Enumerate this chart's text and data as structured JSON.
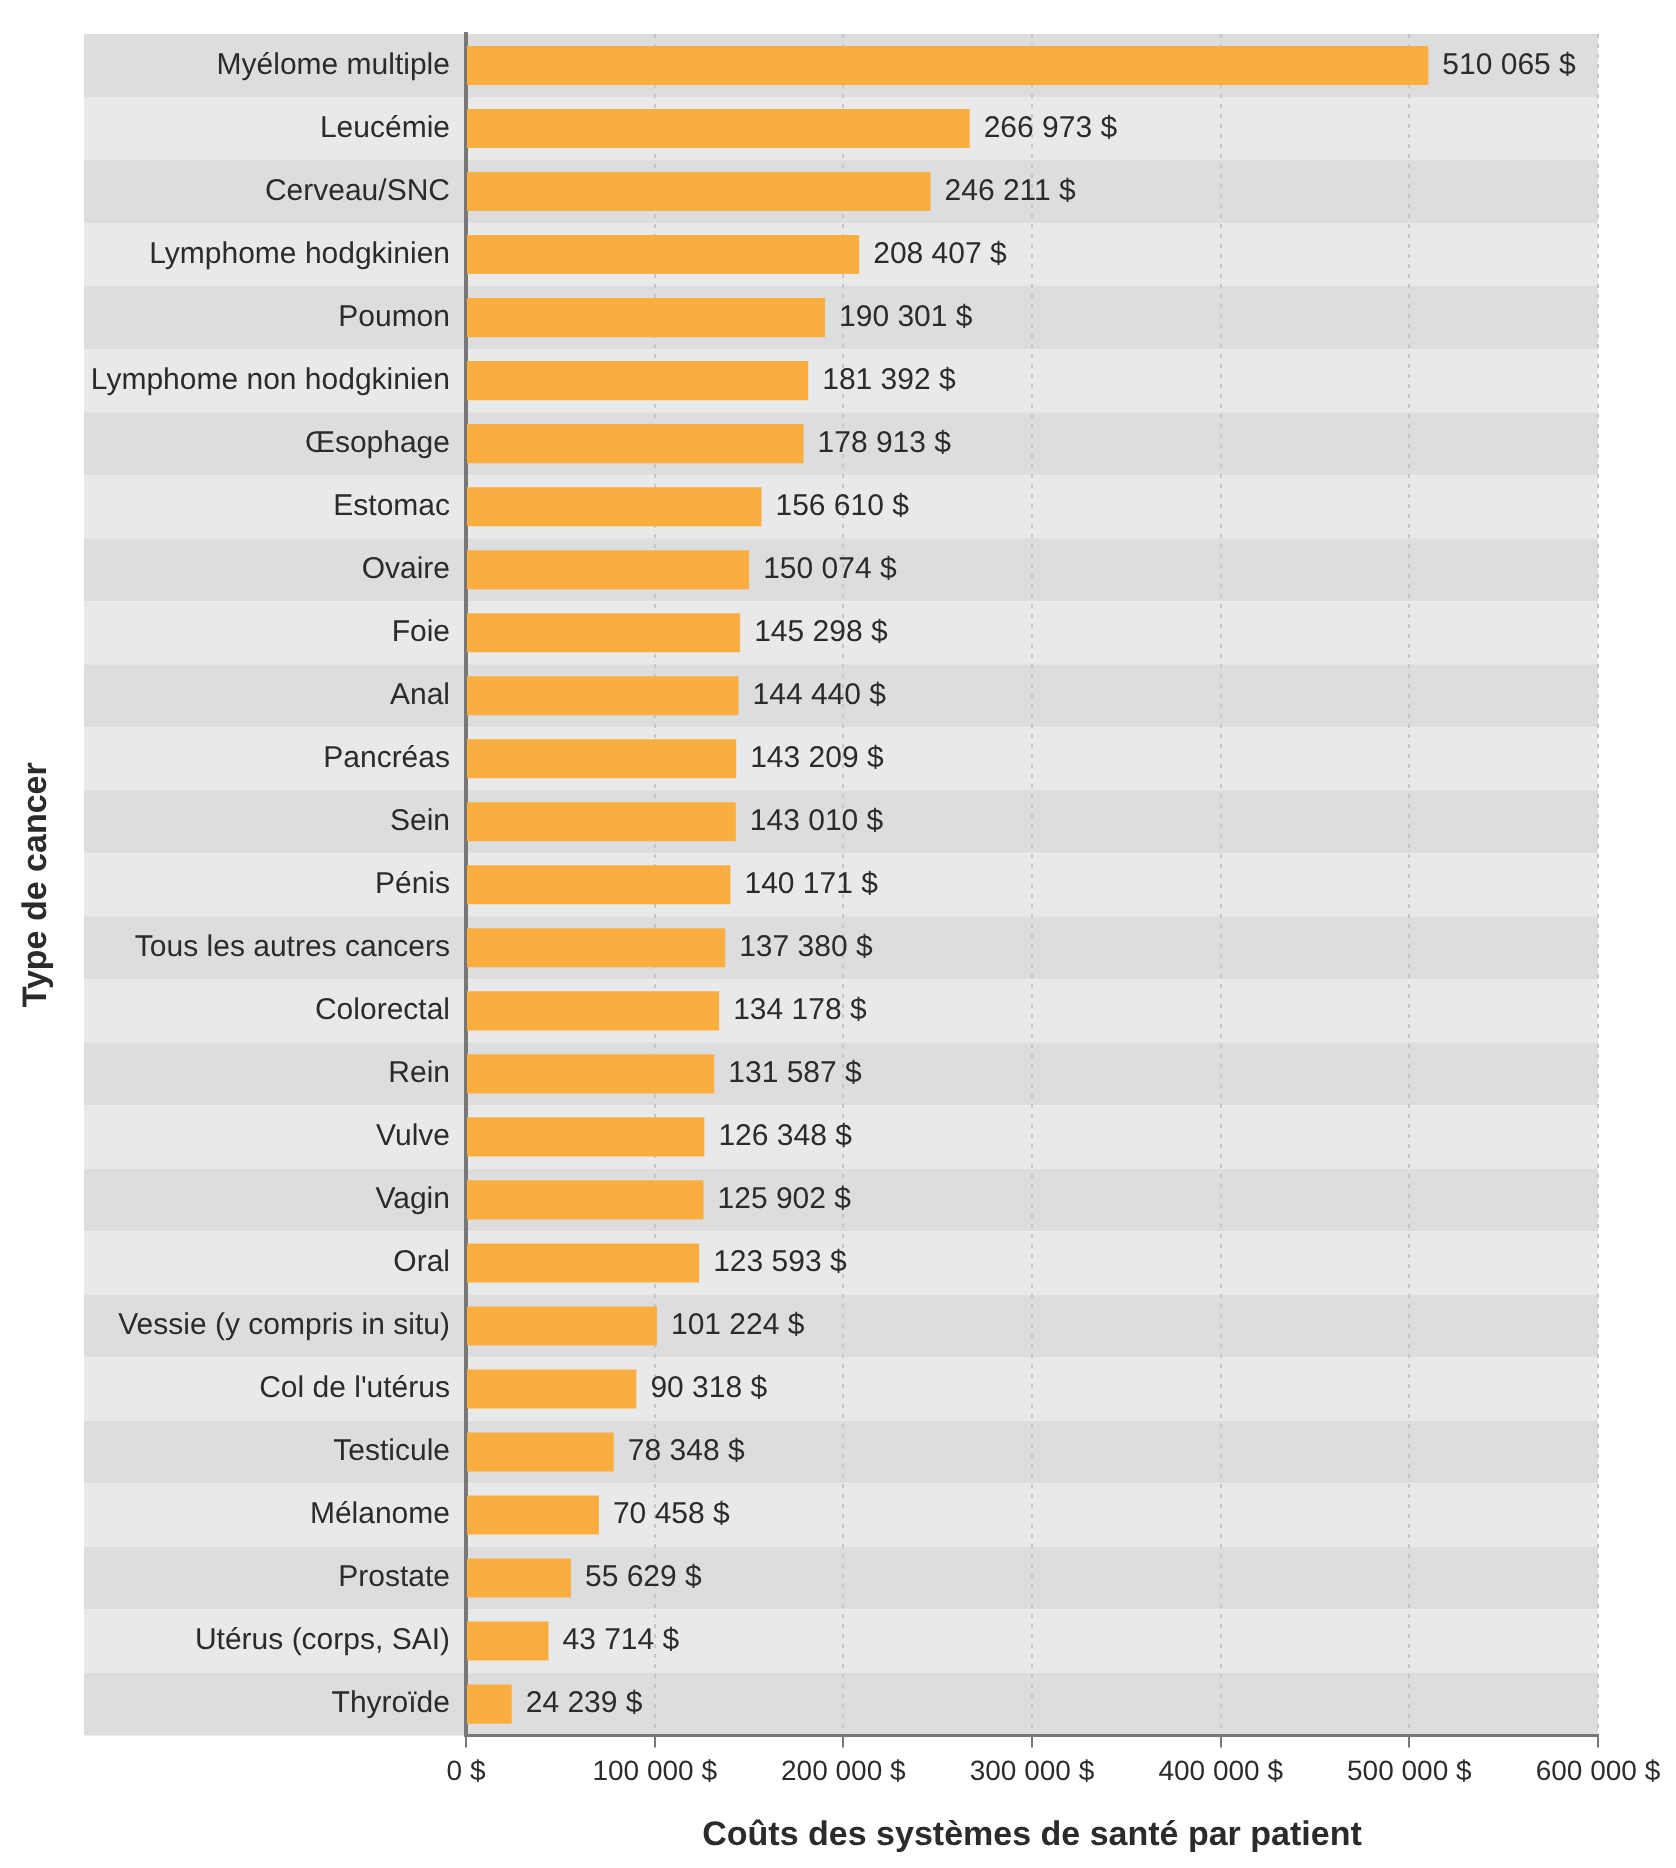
{
  "chart_data": {
    "type": "bar",
    "orientation": "horizontal",
    "xlabel": "Coûts des systèmes de santé par patient",
    "ylabel": "Type de cancer",
    "categories": [
      "Myélome multiple",
      "Leucémie",
      "Cerveau/SNC",
      "Lymphome hodgkinien",
      "Poumon",
      "Lymphome non hodgkinien",
      "Œsophage",
      "Estomac",
      "Ovaire",
      "Foie",
      "Anal",
      "Pancréas",
      "Sein",
      "Pénis",
      "Tous les autres cancers",
      "Colorectal",
      "Rein",
      "Vulve",
      "Vagin",
      "Oral",
      "Vessie (y compris in situ)",
      "Col de l'utérus",
      "Testicule",
      "Mélanome",
      "Prostate",
      "Utérus (corps, SAI)",
      "Thyroïde"
    ],
    "values": [
      510065,
      266973,
      246211,
      208407,
      190301,
      181392,
      178913,
      156610,
      150074,
      145298,
      144440,
      143209,
      143010,
      140171,
      137380,
      134178,
      131587,
      126348,
      125902,
      123593,
      101224,
      90318,
      78348,
      70458,
      55629,
      43714,
      24239
    ],
    "value_labels": [
      "510 065 $",
      "266 973 $",
      "246 211 $",
      "208 407 $",
      "190 301 $",
      "181 392 $",
      "178 913 $",
      "156 610 $",
      "150 074 $",
      "145 298 $",
      "144 440 $",
      "143 209 $",
      "143 010 $",
      "140 171 $",
      "137 380 $",
      "134 178 $",
      "131 587 $",
      "126 348 $",
      "125 902 $",
      "123 593 $",
      "101 224 $",
      "90 318 $",
      "78 348 $",
      "70 458 $",
      "55 629 $",
      "43 714 $",
      "24 239 $"
    ],
    "color": "#fbae40",
    "xlim": [
      0,
      600000
    ],
    "xticks": [
      {
        "value": 0,
        "label": "0 $"
      },
      {
        "value": 100000,
        "label": "100 000 $"
      },
      {
        "value": 200000,
        "label": "200 000 $"
      },
      {
        "value": 300000,
        "label": "300 000 $"
      },
      {
        "value": 400000,
        "label": "400 000 $"
      },
      {
        "value": 500000,
        "label": "500 000 $"
      },
      {
        "value": 600000,
        "label": "600 000 $"
      }
    ],
    "grid": "x"
  }
}
